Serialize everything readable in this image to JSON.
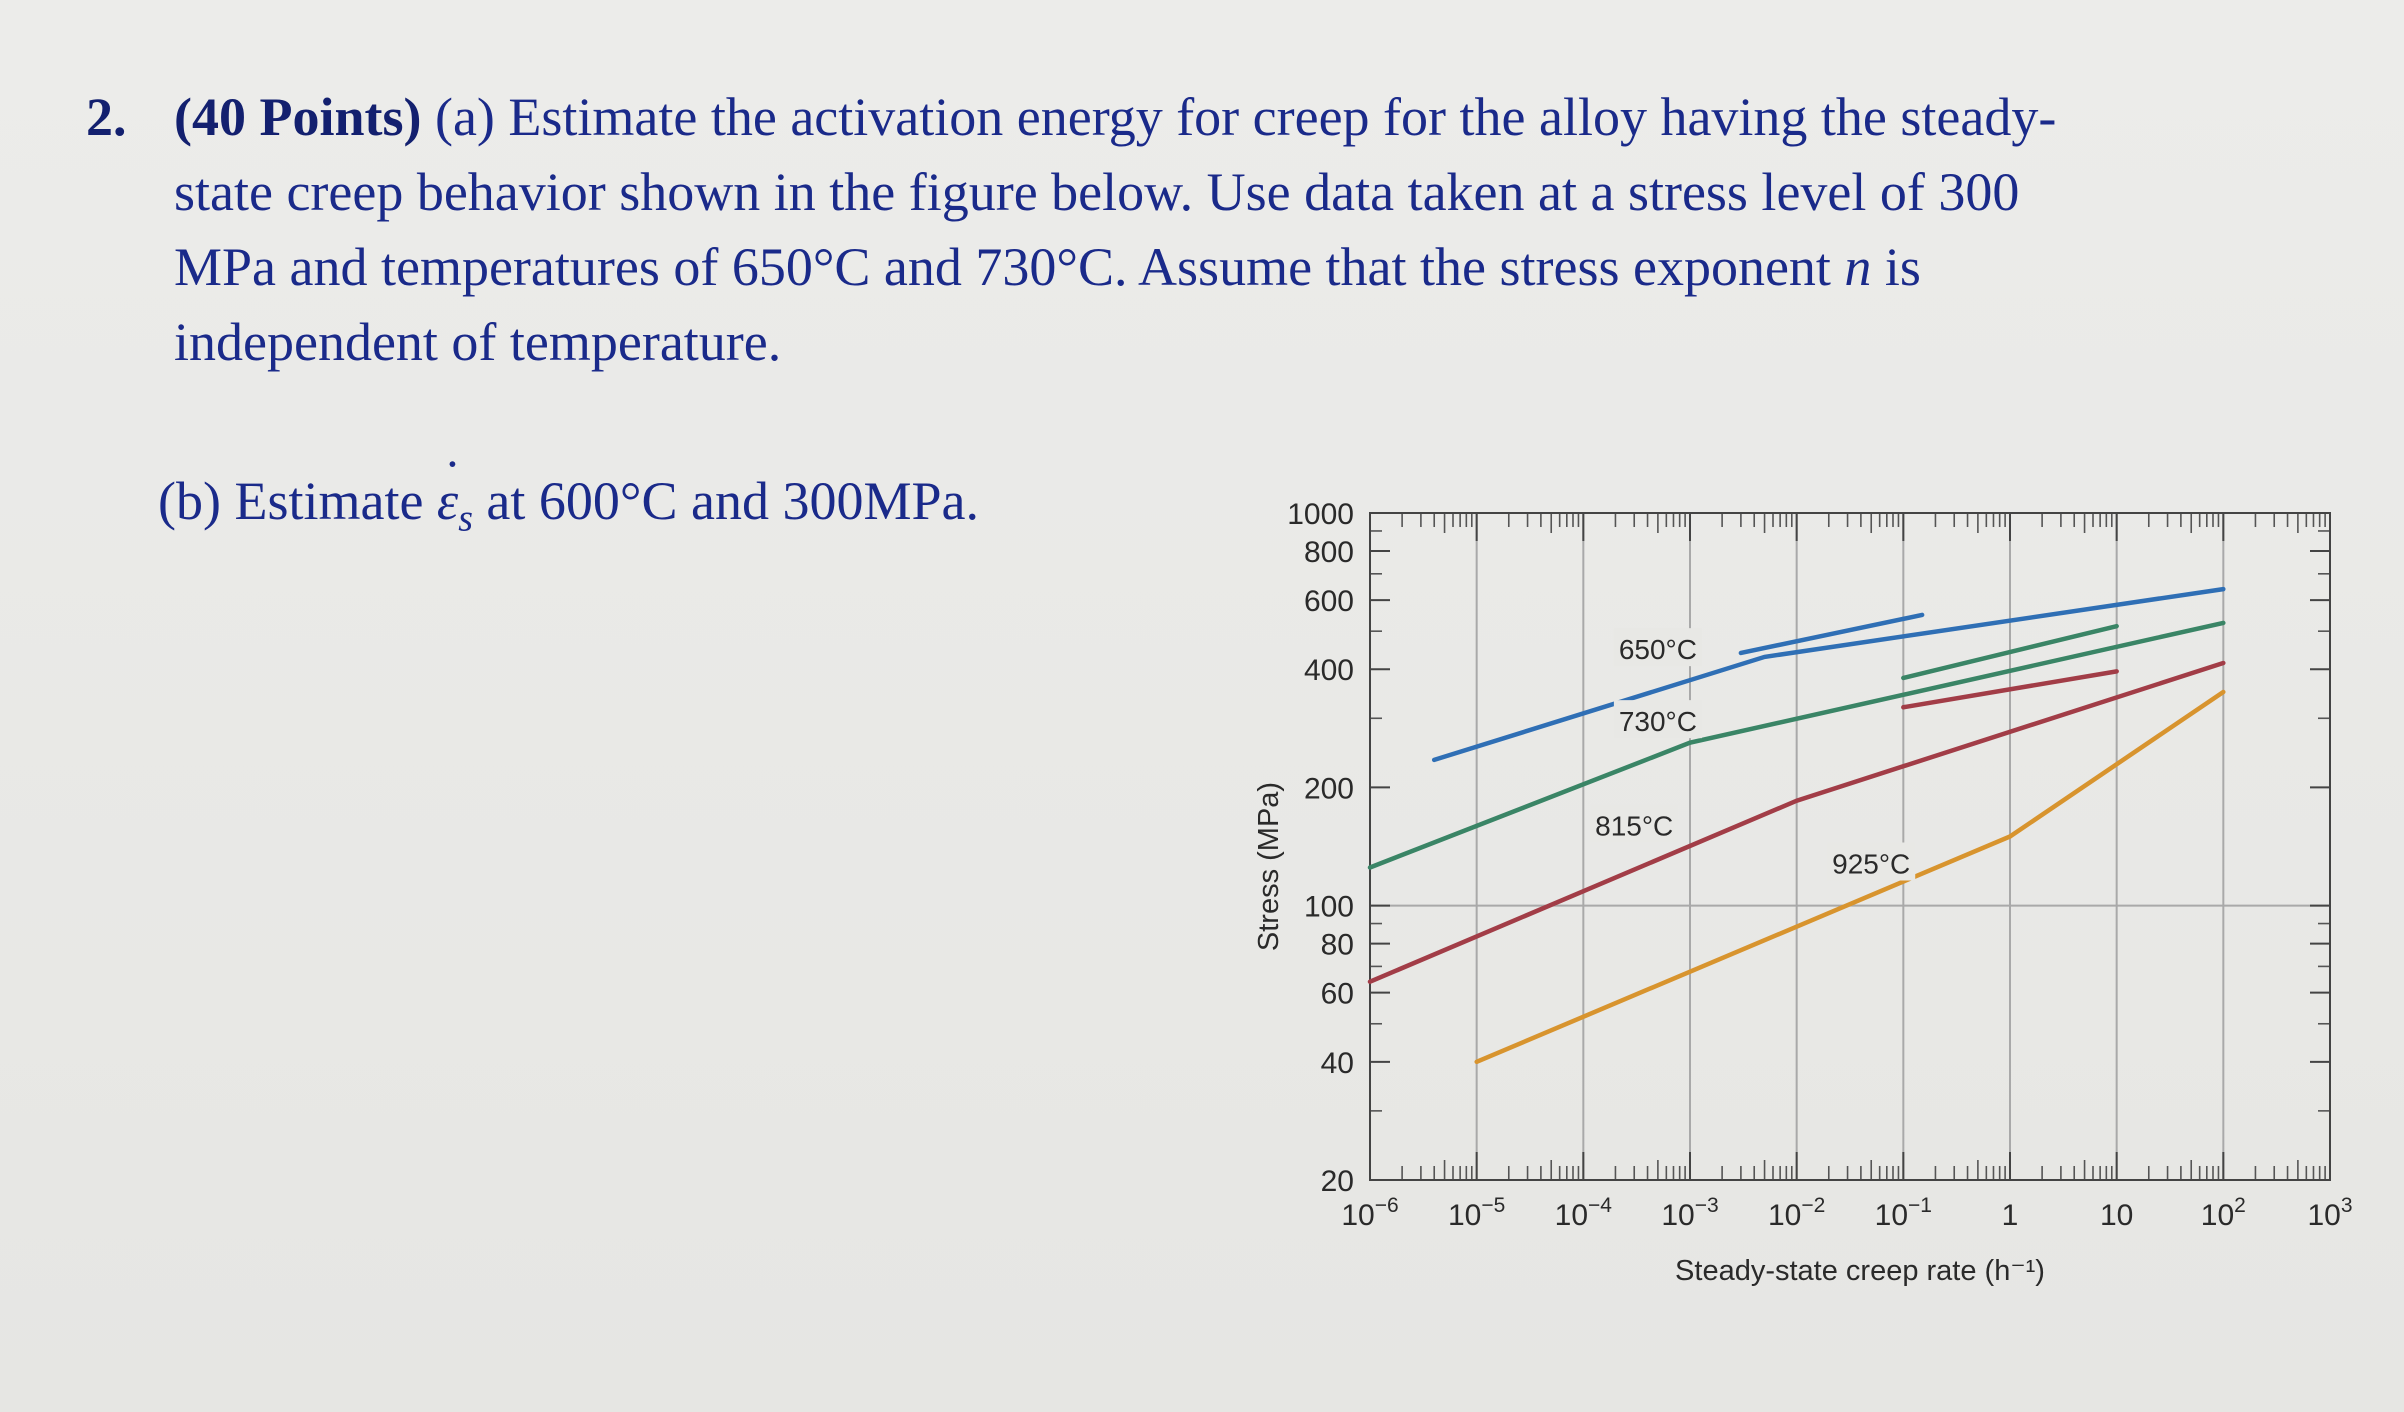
{
  "problem": {
    "number": "2.",
    "points": "(40 Points)",
    "part_a_label": "(a)",
    "line1": "Estimate the activation energy for creep for the alloy having the steady-",
    "line2": "state creep behavior shown in the figure below. Use data taken at a stress level of 300",
    "line3": "MPa and temperatures of 650°C and 730°C. Assume that the stress exponent",
    "line3_n": "n",
    "line3_end": "is",
    "line4": "independent of temperature.",
    "part_b_label": "(b) Estimate",
    "part_b_symbol": "ε",
    "part_b_subscript": "s",
    "part_b_rest": "at 600°C and 300MPa."
  },
  "chart_data": {
    "type": "line",
    "title": "",
    "xlabel": "Steady-state creep rate (h⁻¹)",
    "ylabel": "Stress (MPa)",
    "x_scale": "log",
    "y_scale": "log",
    "xlim": [
      1e-06,
      1000
    ],
    "ylim": [
      20,
      1000
    ],
    "grid": true,
    "x_ticks": [
      {
        "value": 1e-06,
        "base": "10",
        "exp": "−6"
      },
      {
        "value": 1e-05,
        "base": "10",
        "exp": "−5"
      },
      {
        "value": 0.0001,
        "base": "10",
        "exp": "−4"
      },
      {
        "value": 0.001,
        "base": "10",
        "exp": "−3"
      },
      {
        "value": 0.01,
        "base": "10",
        "exp": "−2"
      },
      {
        "value": 0.1,
        "base": "10",
        "exp": "−1"
      },
      {
        "value": 1,
        "base": "1",
        "exp": ""
      },
      {
        "value": 10,
        "base": "10",
        "exp": ""
      },
      {
        "value": 100,
        "base": "10",
        "exp": "2"
      },
      {
        "value": 1000,
        "base": "10",
        "exp": "3"
      }
    ],
    "y_ticks": [
      {
        "value": 1000,
        "label": "1000"
      },
      {
        "value": 800,
        "label": "800"
      },
      {
        "value": 600,
        "label": "600"
      },
      {
        "value": 400,
        "label": "400"
      },
      {
        "value": 200,
        "label": "200"
      },
      {
        "value": 100,
        "label": "100"
      },
      {
        "value": 80,
        "label": "80"
      },
      {
        "value": 60,
        "label": "60"
      },
      {
        "value": 40,
        "label": "40"
      },
      {
        "value": 20,
        "label": "20"
      }
    ],
    "series": [
      {
        "name": "650°C",
        "color": "#2f6fb5",
        "points": [
          [
            4e-06,
            235
          ],
          [
            0.005,
            430
          ],
          [
            100,
            640
          ]
        ],
        "extra_segments": [
          [
            [
              0.003,
              440
            ],
            [
              0.15,
              550
            ]
          ]
        ],
        "label_at": [
          0.0005,
          450
        ]
      },
      {
        "name": "730°C",
        "color": "#3a8566",
        "points": [
          [
            1e-06,
            125
          ],
          [
            0.001,
            260
          ],
          [
            100,
            525
          ]
        ],
        "extra_segments": [
          [
            [
              0.1,
              380
            ],
            [
              10,
              515
            ]
          ]
        ],
        "label_at": [
          0.0005,
          295
        ]
      },
      {
        "name": "815°C",
        "color": "#a23d47",
        "points": [
          [
            1e-06,
            64
          ],
          [
            0.01,
            185
          ],
          [
            100,
            415
          ]
        ],
        "extra_segments": [
          [
            [
              0.1,
              320
            ],
            [
              10,
              395
            ]
          ]
        ],
        "label_at": [
          0.0003,
          160
        ]
      },
      {
        "name": "925°C",
        "color": "#d8942e",
        "points": [
          [
            1e-05,
            40
          ],
          [
            1,
            150
          ],
          [
            100,
            350
          ]
        ],
        "extra_segments": [],
        "label_at": [
          0.05,
          128
        ]
      }
    ]
  }
}
